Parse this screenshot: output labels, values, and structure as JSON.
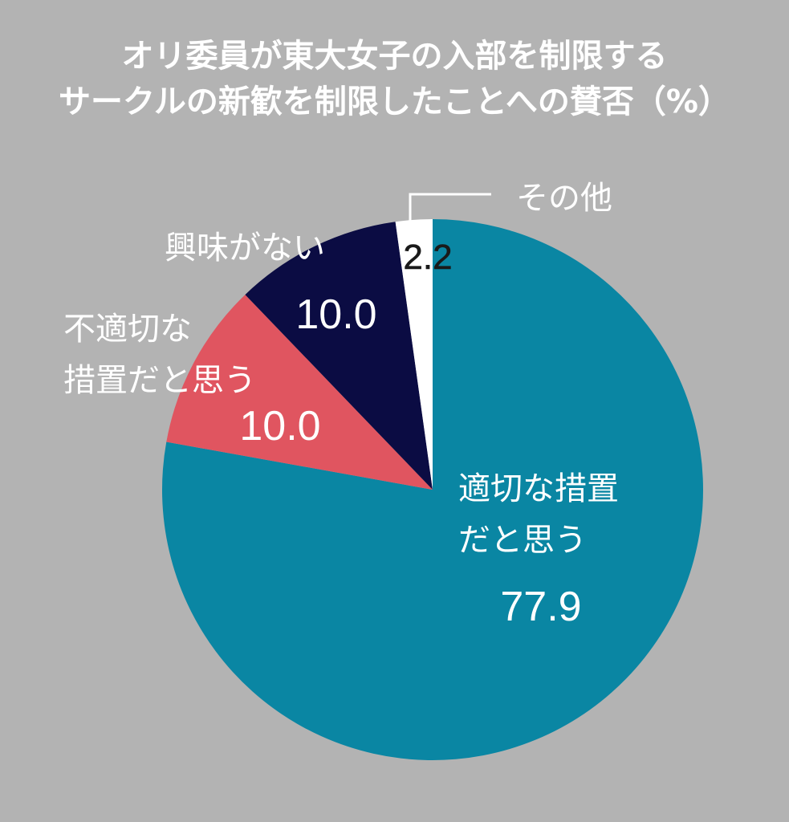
{
  "chart_data": {
    "type": "pie",
    "title": "オリ委員が東大女子の入部を制限するサークルの新歓を制限したことへの賛否（%）",
    "title_lines": [
      "オリ委員が東大女子の入部を制限する",
      "サークルの新歓を制限したことへの賛否（%）"
    ],
    "slices": [
      {
        "label": "適切な措置だと思う",
        "label_lines": [
          "適切な措置",
          "だと思う"
        ],
        "value": 77.9,
        "value_label": "77.9",
        "color": "#0a86a3"
      },
      {
        "label": "不適切な措置だと思う",
        "label_lines": [
          "不適切な",
          "措置だと思う"
        ],
        "value": 10.0,
        "value_label": "10.0",
        "color": "#e05560"
      },
      {
        "label": "興味がない",
        "label_lines": [
          "興味がない"
        ],
        "value": 10.0,
        "value_label": "10.0",
        "color": "#0b0c43"
      },
      {
        "label": "その他",
        "label_lines": [
          "その他"
        ],
        "value": 2.2,
        "value_label": "2.2",
        "color": "#ffffff"
      }
    ],
    "start": "12 o'clock",
    "direction": "clockwise",
    "legend": "none",
    "background": "#b3b3b3"
  }
}
